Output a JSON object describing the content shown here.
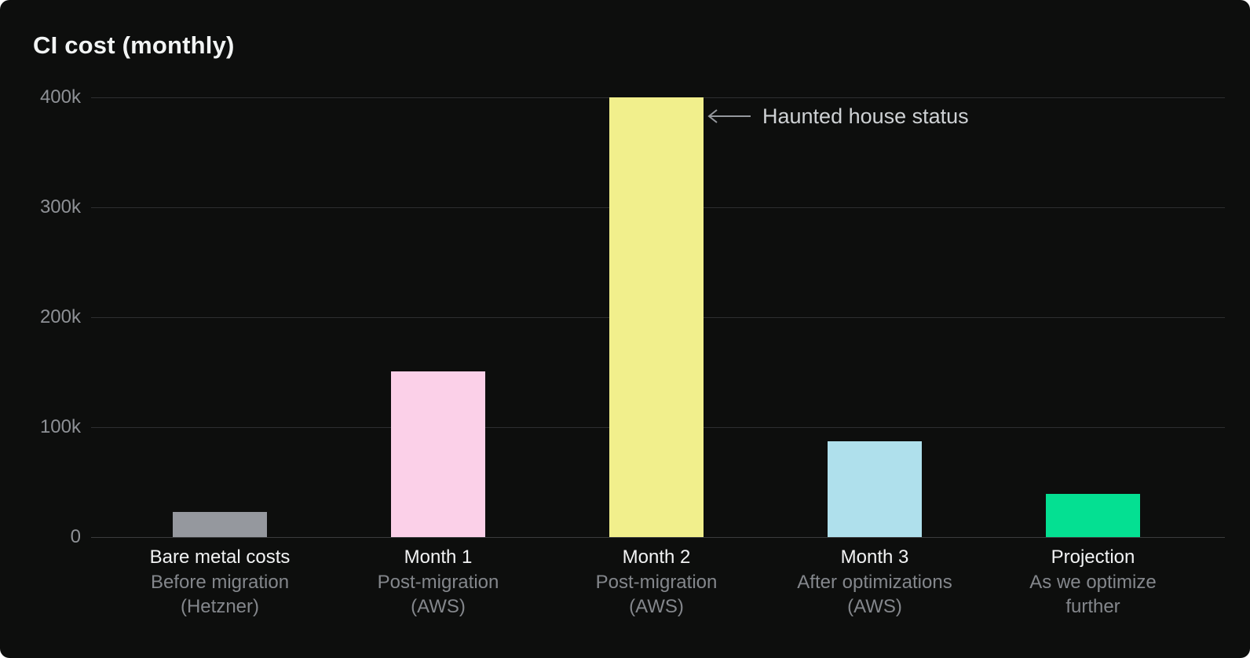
{
  "theme": {
    "card_background": "#0D0E0D",
    "title_color": "#F2F4F4",
    "tick_color": "#8E9196",
    "grid_color": "#2D2E30",
    "category_color": "#F2F3F4",
    "subcategory_color": "#84878C",
    "annotation_color": "#CED1D4",
    "arrow_color": "#95989D"
  },
  "chart_data": {
    "type": "bar",
    "title": "CI cost (monthly)",
    "categories": [
      {
        "label": "Bare metal costs",
        "sublines": [
          "Before migration",
          "(Hetzner)"
        ]
      },
      {
        "label": "Month 1",
        "sublines": [
          "Post-migration",
          "(AWS)"
        ]
      },
      {
        "label": "Month 2",
        "sublines": [
          "Post-migration",
          "(AWS)"
        ]
      },
      {
        "label": "Month 3",
        "sublines": [
          "After optimizations",
          "(AWS)"
        ]
      },
      {
        "label": "Projection",
        "sublines": [
          "As we optimize",
          "further"
        ]
      }
    ],
    "values": [
      23000,
      151000,
      400000,
      87000,
      39000
    ],
    "bar_colors": [
      "#95989E",
      "#FBD0E8",
      "#F1EF8C",
      "#AFE0EC",
      "#04E092"
    ],
    "xlabel": "",
    "ylabel": "",
    "ylim": [
      0,
      400000
    ],
    "yticks": [
      {
        "label": "0",
        "value": 0
      },
      {
        "label": "100k",
        "value": 100000
      },
      {
        "label": "200k",
        "value": 200000
      },
      {
        "label": "300k",
        "value": 300000
      },
      {
        "label": "400k",
        "value": 400000
      }
    ],
    "grid": true,
    "legend": false,
    "annotation": {
      "text": "Haunted house status",
      "points_to": "Month 2",
      "arrow_direction": "left"
    }
  }
}
